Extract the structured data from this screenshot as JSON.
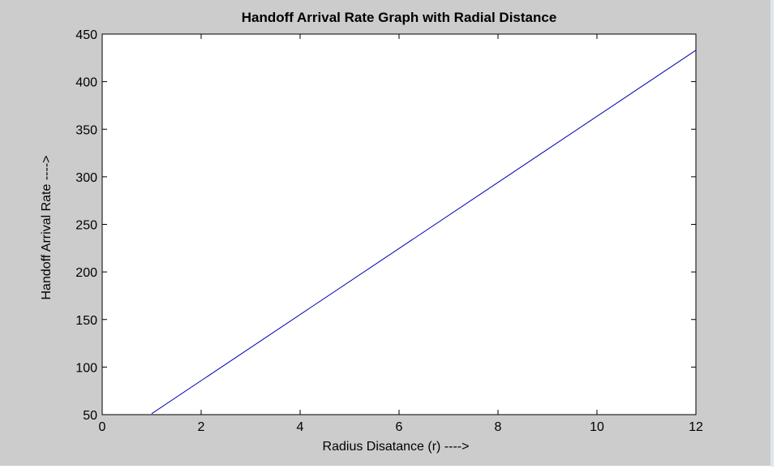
{
  "chart_data": {
    "type": "line",
    "title": "Handoff Arrival Rate Graph with Radial Distance",
    "xlabel": "Radius Disatance (r)  ---->",
    "ylabel": "Handoff Arrival Rate ---->",
    "xlim": [
      0,
      12
    ],
    "ylim": [
      50,
      450
    ],
    "xticks": [
      0,
      2,
      4,
      6,
      8,
      10,
      12
    ],
    "yticks": [
      50,
      100,
      150,
      200,
      250,
      300,
      350,
      400,
      450
    ],
    "grid": false,
    "series": [
      {
        "x": [
          1,
          12
        ],
        "y": [
          51,
          433
        ],
        "color": "#0000aa"
      }
    ]
  }
}
